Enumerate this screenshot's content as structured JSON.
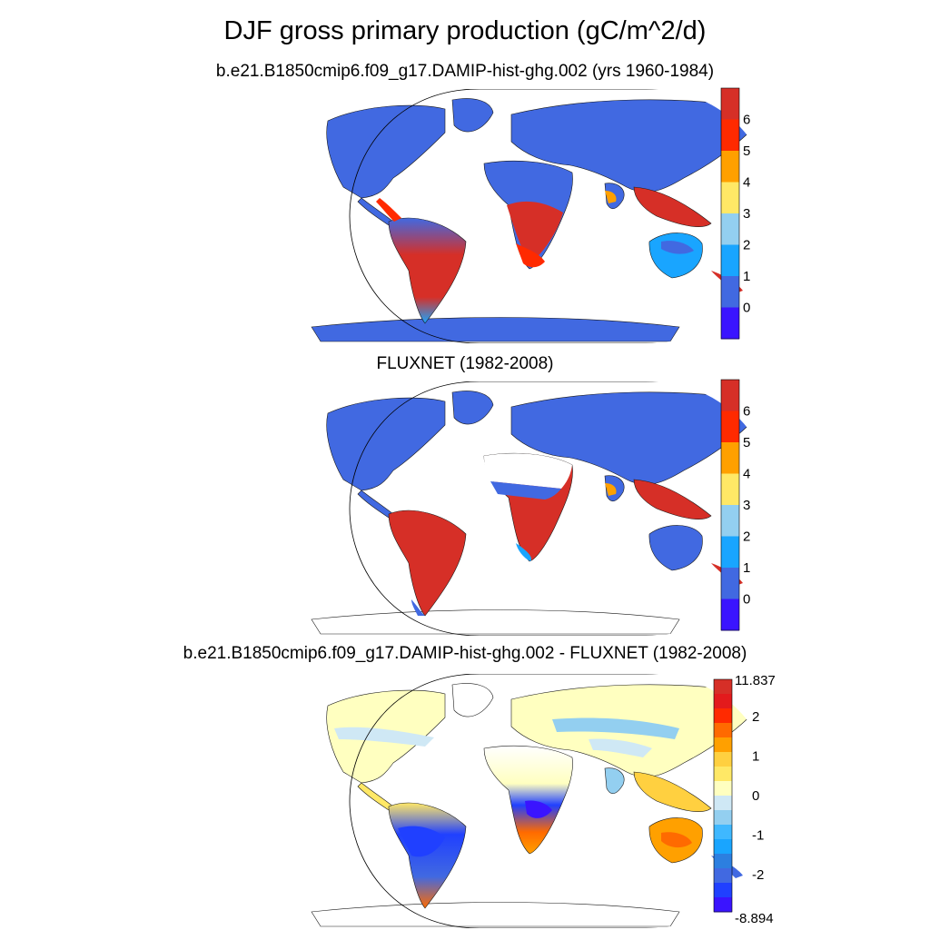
{
  "figure": {
    "title": "DJF gross primary production (gC/m^2/d)"
  },
  "panels": [
    {
      "subtitle": "b.e21.B1850cmip6.f09_g17.DAMIP-hist-ghg.002 (yrs 1960-1984)"
    },
    {
      "subtitle": "FLUXNET (1982-2008)"
    },
    {
      "subtitle": "b.e21.B1850cmip6.f09_g17.DAMIP-hist-ghg.002 - FLUXNET (1982-2008)"
    }
  ],
  "colorbars": {
    "absolute": {
      "ticks": [
        "6",
        "5",
        "4",
        "3",
        "2",
        "1",
        "0"
      ],
      "colors": [
        "#d62f27",
        "#ff2a00",
        "#ffa000",
        "#ffe866",
        "#93cff0",
        "#19a5ff",
        "#4169e1",
        "#3a14ff"
      ]
    },
    "difference": {
      "max_label": "11.837",
      "min_label": "-8.894",
      "ticks": [
        "2",
        "1",
        "0",
        "-1",
        "-2"
      ],
      "colors": [
        "#d62f27",
        "#e31a1c",
        "#ff2a00",
        "#ff6a00",
        "#ffa000",
        "#ffd040",
        "#ffe866",
        "#ffffc0",
        "#cfe8f5",
        "#93cff0",
        "#3fb8ff",
        "#19a5ff",
        "#2c7fe0",
        "#4169e1",
        "#2040ff",
        "#3a14ff"
      ]
    }
  }
}
